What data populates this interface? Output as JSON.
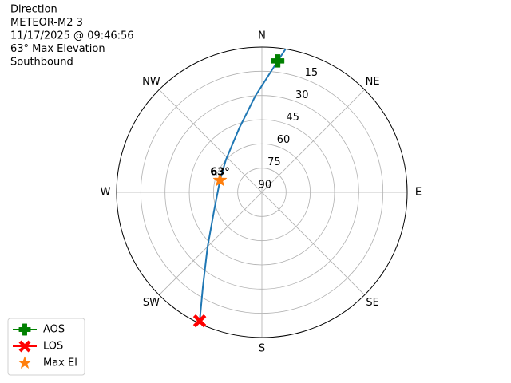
{
  "chart_data": {
    "type": "polar",
    "annotations": [
      "Direction",
      "METEOR-M2 3",
      "11/17/2025 @ 09:46:56",
      "63° Max Elevation",
      "Southbound"
    ],
    "xticks": [
      {
        "value": 0,
        "label": "N"
      },
      {
        "value": 45,
        "label": "NE"
      },
      {
        "value": 90,
        "label": "E"
      },
      {
        "value": 135,
        "label": "SE"
      },
      {
        "value": 180,
        "label": "S"
      },
      {
        "value": 225,
        "label": "SW"
      },
      {
        "value": 270,
        "label": "W"
      },
      {
        "value": 315,
        "label": "NW"
      }
    ],
    "ylim": [
      90,
      0
    ],
    "yticks": [
      15,
      30,
      45,
      60,
      75,
      90
    ],
    "grid": true,
    "legend": "lower left",
    "series": [
      {
        "color": "#1f77b4",
        "marker": "line",
        "x": [
          9.4,
          6.9,
          356.2,
          340.9,
          312.3,
          286,
          248.2,
          224.6,
          211.9,
          205.8
        ],
        "values": [
          0,
          8,
          30,
          47.6,
          59.9,
          63,
          58,
          42,
          20.8,
          1.5
        ]
      },
      {
        "name": "AOS",
        "color": "#008000",
        "marker": "plus",
        "x": [
          6.9
        ],
        "values": [
          8
        ]
      },
      {
        "name": "LOS",
        "color": "#ff0000",
        "marker": "x",
        "x": [
          205.8
        ],
        "values": [
          1.5
        ]
      },
      {
        "name": "Max El",
        "color": "#ff7f0e",
        "marker": "star",
        "x": [
          286
        ],
        "values": [
          63
        ],
        "value_labels": [
          "63°"
        ]
      }
    ]
  }
}
